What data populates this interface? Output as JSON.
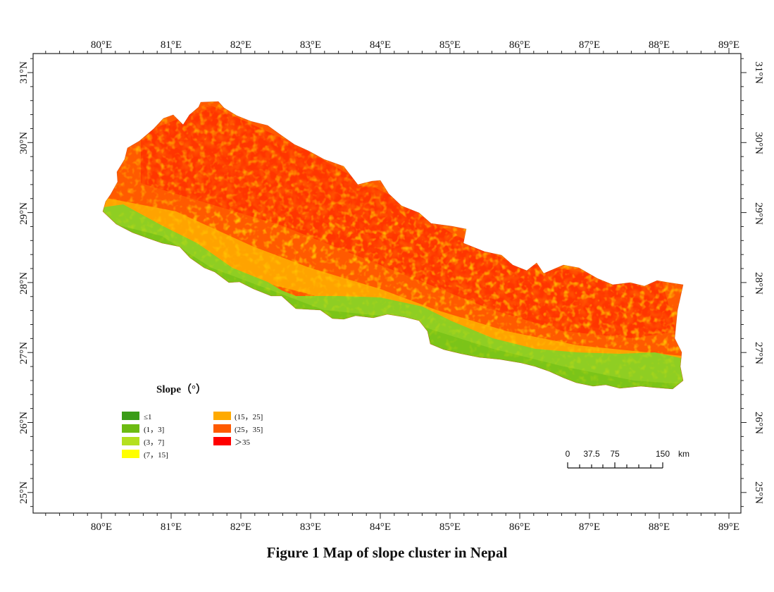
{
  "map": {
    "lon_labels": [
      "80°E",
      "81°E",
      "82°E",
      "83°E",
      "84°E",
      "85°E",
      "86°E",
      "87°E",
      "88°E",
      "89°E"
    ],
    "lat_labels": [
      "31°N",
      "30°N",
      "29°N",
      "28°N",
      "27°N",
      "26°N",
      "25°N"
    ],
    "lon_values": [
      80,
      81,
      82,
      83,
      84,
      85,
      86,
      87,
      88,
      89
    ],
    "lat_values": [
      31,
      30,
      29,
      28,
      27,
      26,
      25
    ]
  },
  "legend": {
    "title": "Slope（°）",
    "items": [
      {
        "label": "≤1",
        "color": "#3a9c17"
      },
      {
        "label": "(1，3]",
        "color": "#6cbb12"
      },
      {
        "label": "(3，7]",
        "color": "#b4e01e"
      },
      {
        "label": "(7，15]",
        "color": "#ffff00"
      },
      {
        "label": "(15，25]",
        "color": "#ffaa00"
      },
      {
        "label": "(25，35]",
        "color": "#ff5a00"
      },
      {
        "label": "＞35",
        "color": "#ff0000"
      }
    ]
  },
  "scale_bar": {
    "labels": [
      "0",
      "37.5",
      "75",
      "150"
    ],
    "unit": "km"
  },
  "caption": "Figure 1  Map of slope cluster in Nepal"
}
